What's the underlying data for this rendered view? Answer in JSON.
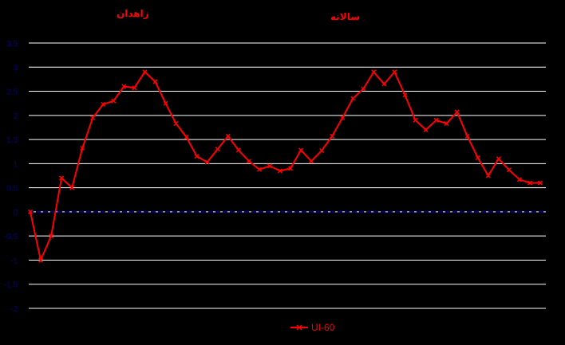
{
  "colors": {
    "background": "#000000",
    "series": "#ff0000",
    "zero_line": "#000080",
    "grid": "#ffffff",
    "axis_text": "#000080"
  },
  "labels": {
    "title_left": "زاهدان",
    "title_right": "سالانه"
  },
  "chart_data": {
    "type": "line",
    "title": "",
    "xlabel": "",
    "ylabel": "",
    "ylim": [
      -2,
      3.5
    ],
    "yticks": [
      "3.5",
      "3",
      "2.5",
      "2",
      "1.5",
      "1",
      "0.5",
      "0",
      "-0.5",
      "-1",
      "-1.5",
      "-2"
    ],
    "grid": true,
    "legend": "bottom",
    "series": [
      {
        "name": "UI-60",
        "values": [
          0,
          -1,
          -0.5,
          0.7,
          0.5,
          1.32,
          1.95,
          2.23,
          2.3,
          2.6,
          2.57,
          2.9,
          2.7,
          2.25,
          1.83,
          1.55,
          1.15,
          1.03,
          1.3,
          1.57,
          1.28,
          1.05,
          0.88,
          0.95,
          0.85,
          0.9,
          1.28,
          1.05,
          1.27,
          1.57,
          1.95,
          2.35,
          2.55,
          2.9,
          2.65,
          2.9,
          2.42,
          1.9,
          1.7,
          1.9,
          1.83,
          2.07,
          1.57,
          1.12,
          0.75,
          1.1,
          0.87,
          0.67,
          0.6,
          0.6
        ]
      }
    ]
  }
}
